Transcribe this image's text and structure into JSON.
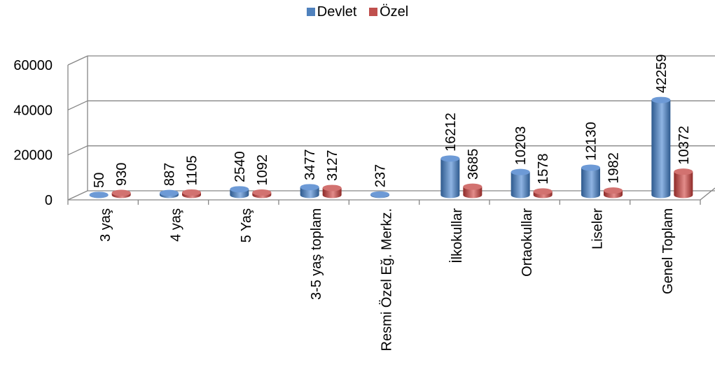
{
  "chart_data": {
    "type": "bar",
    "categories": [
      "3 yaş",
      "4 yaş",
      "5 Yaş",
      "3-5 yaş toplam",
      "Resmi Özel Eğ. Merkz.",
      "İlkokullar",
      "Ortaokullar",
      "Liseler",
      "Genel Toplam"
    ],
    "series": [
      {
        "name": "Devlet",
        "color": "#4F81BD",
        "values": [
          50,
          887,
          2540,
          3477,
          237,
          16212,
          10203,
          12130,
          42259
        ]
      },
      {
        "name": "Özel",
        "color": "#C0504D",
        "values": [
          930,
          1105,
          1092,
          3127,
          null,
          3685,
          1578,
          1982,
          10372
        ]
      }
    ],
    "y_ticks": [
      0,
      20000,
      40000,
      60000
    ],
    "ylim": [
      0,
      60000
    ],
    "legend_position": "top",
    "grid": true,
    "three_d": true
  }
}
